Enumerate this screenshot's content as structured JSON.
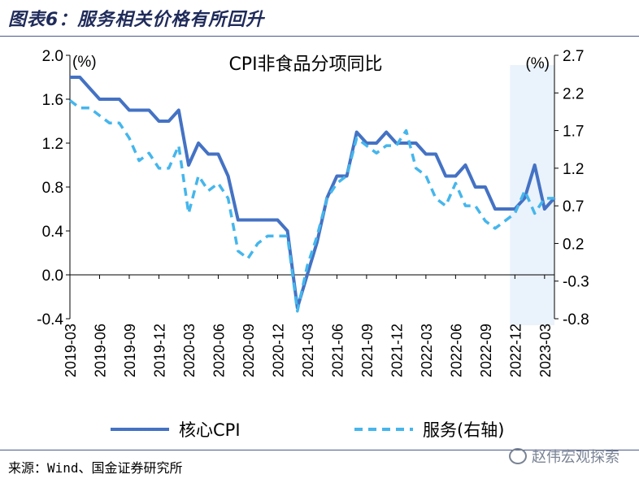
{
  "figure_title": "图表6：服务相关价格有所回升",
  "source": "来源：Wind、国金证券研究所",
  "watermark": "赵伟宏观探索",
  "chart_data": {
    "type": "line",
    "title": "CPI非食品分项同比",
    "left_unit": "(%)",
    "right_unit": "(%)",
    "ylim_left": [
      -0.4,
      2.0
    ],
    "yticks_left": [
      "2.0",
      "1.6",
      "1.2",
      "0.8",
      "0.4",
      "0.0",
      "-0.4"
    ],
    "ylim_right": [
      -0.8,
      2.7
    ],
    "yticks_right": [
      "2.7",
      "2.2",
      "1.7",
      "1.2",
      "0.7",
      "0.2",
      "-0.3",
      "-0.8"
    ],
    "x_tick_labels": [
      "2019-03",
      "2019-06",
      "2019-09",
      "2019-12",
      "2020-03",
      "2020-06",
      "2020-09",
      "2020-12",
      "2021-03",
      "2021-06",
      "2021-09",
      "2021-12",
      "2022-03",
      "2022-06",
      "2022-09",
      "2022-12",
      "2023-03"
    ],
    "x_start": "2019-03",
    "shaded_region": [
      "2022-12",
      "2023-04"
    ],
    "series": [
      {
        "name": "核心CPI",
        "axis": "left",
        "style": "solid",
        "color": "#4472c4",
        "values": [
          1.8,
          1.8,
          1.7,
          1.6,
          1.6,
          1.6,
          1.5,
          1.5,
          1.5,
          1.4,
          1.4,
          1.5,
          1.0,
          1.2,
          1.1,
          1.1,
          0.9,
          0.5,
          0.5,
          0.5,
          0.5,
          0.5,
          0.4,
          -0.3,
          0.0,
          0.3,
          0.7,
          0.9,
          0.9,
          1.3,
          1.2,
          1.2,
          1.3,
          1.2,
          1.2,
          1.2,
          1.1,
          1.1,
          0.9,
          0.9,
          1.0,
          0.8,
          0.8,
          0.6,
          0.6,
          0.6,
          0.7,
          1.0,
          0.6,
          0.7
        ]
      },
      {
        "name": "服务(右轴)",
        "axis": "right",
        "style": "dashed",
        "color": "#45b6ec",
        "values": [
          2.1,
          2.0,
          2.0,
          1.9,
          1.8,
          1.8,
          1.6,
          1.3,
          1.4,
          1.2,
          1.2,
          1.5,
          0.6,
          1.1,
          0.9,
          1.0,
          0.8,
          0.1,
          0.0,
          0.2,
          0.3,
          0.3,
          0.3,
          -0.7,
          -0.1,
          0.3,
          0.8,
          1.0,
          1.1,
          1.6,
          1.5,
          1.4,
          1.5,
          1.5,
          1.7,
          1.2,
          1.1,
          0.8,
          0.7,
          1.0,
          0.7,
          0.7,
          0.5,
          0.4,
          0.5,
          0.6,
          0.9,
          0.6,
          0.8,
          0.8
        ]
      }
    ]
  }
}
